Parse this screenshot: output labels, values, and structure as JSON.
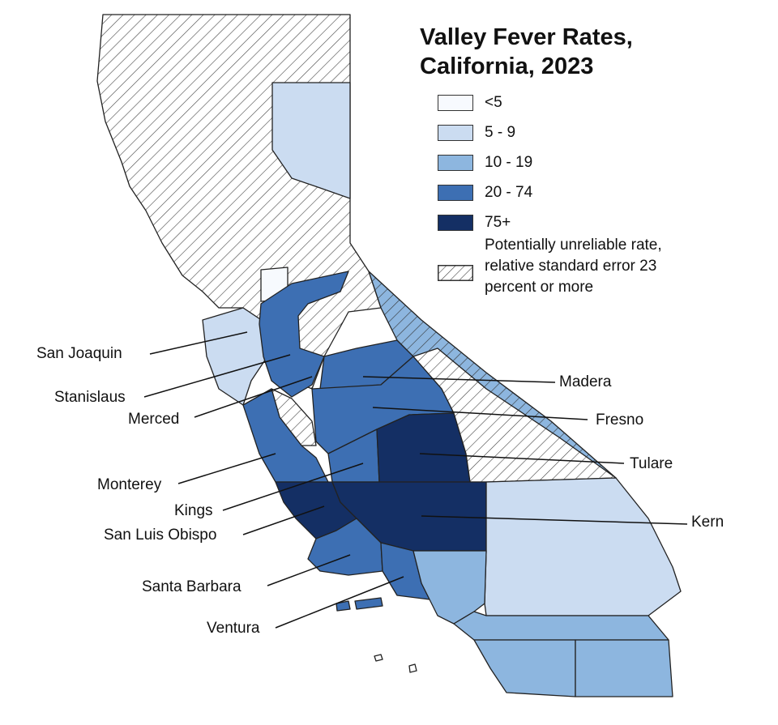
{
  "title_line1": "Valley Fever Rates,",
  "title_line2": "California, 2023",
  "legend": {
    "items": [
      {
        "label": "<5",
        "color": "#f7fafe"
      },
      {
        "label": "5 - 9",
        "color": "#cbdcf1"
      },
      {
        "label": "10 - 19",
        "color": "#8db6df"
      },
      {
        "label": "20 - 74",
        "color": "#3d6fb3"
      },
      {
        "label": "75+",
        "color": "#142f64"
      }
    ],
    "hatch_line1": "Potentially unreliable rate,",
    "hatch_line2": "relative standard error 23",
    "hatch_line3": "percent or more"
  },
  "labels": {
    "san_joaquin": "San Joaquin",
    "stanislaus": "Stanislaus",
    "merced": "Merced",
    "monterey": "Monterey",
    "kings": "Kings",
    "san_luis_obispo": "San Luis Obispo",
    "santa_barbara": "Santa Barbara",
    "ventura": "Ventura",
    "madera": "Madera",
    "fresno": "Fresno",
    "tulare": "Tulare",
    "kern": "Kern"
  }
}
